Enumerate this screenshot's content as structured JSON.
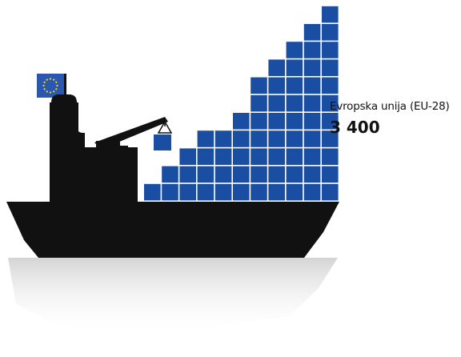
{
  "region": {
    "label": "Evropska unija (EU-28)",
    "value": "3 400"
  },
  "stack_columns": [
    1,
    2,
    3,
    4,
    4,
    5,
    7,
    8,
    9,
    10,
    11
  ],
  "colors": {
    "container_blue": "#1a4ea2",
    "ship_black": "#111111",
    "eu_flag_blue": "#2a57b0",
    "eu_star_yellow": "#ffde00",
    "reflection_grey": "#d9d9d9"
  },
  "icons": {
    "ship": "cargo-ship-icon",
    "flag": "eu-flag-icon",
    "crane": "crane-icon"
  }
}
